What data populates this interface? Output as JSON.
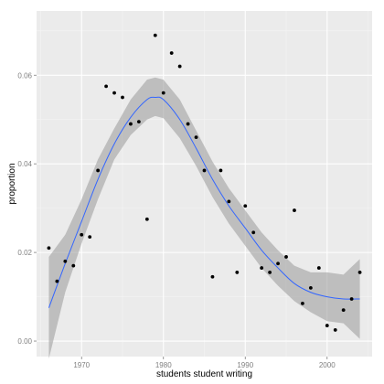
{
  "chart_data": {
    "type": "scatter",
    "xlabel": "students student writing",
    "ylabel": "proportion",
    "xlim": [
      1964.5,
      2005.5
    ],
    "ylim": [
      -0.0035,
      0.0745
    ],
    "x_ticks": [
      1970,
      1980,
      1990,
      2000
    ],
    "x_tick_labels": [
      "1970",
      "1980",
      "1990",
      "2000"
    ],
    "y_ticks": [
      0.0,
      0.02,
      0.04,
      0.06
    ],
    "y_tick_labels": [
      "0.00",
      "0.02",
      "0.04",
      "0.06"
    ],
    "grid": true,
    "legend": "none",
    "points": {
      "x": [
        1966,
        1967,
        1968,
        1969,
        1970,
        1971,
        1972,
        1973,
        1974,
        1975,
        1976,
        1977,
        1978,
        1979,
        1980,
        1981,
        1982,
        1983,
        1984,
        1985,
        1986,
        1987,
        1988,
        1989,
        1990,
        1991,
        1992,
        1993,
        1994,
        1995,
        1996,
        1997,
        1998,
        1999,
        2000,
        2001,
        2002,
        2003,
        2004
      ],
      "y": [
        0.021,
        0.0135,
        0.018,
        0.017,
        0.024,
        0.0235,
        0.0385,
        0.0575,
        0.056,
        0.055,
        0.049,
        0.0495,
        0.0275,
        0.069,
        0.056,
        0.065,
        0.062,
        0.049,
        0.046,
        0.0385,
        0.0145,
        0.0385,
        0.0315,
        0.0155,
        0.0305,
        0.0245,
        0.0165,
        0.0155,
        0.0175,
        0.019,
        0.0295,
        0.0085,
        0.012,
        0.0165,
        0.0035,
        0.0025,
        0.007,
        0.0095,
        0.0155
      ]
    },
    "smooth": {
      "x": [
        1966,
        1968,
        1970,
        1972,
        1974,
        1976,
        1978,
        1979,
        1980,
        1982,
        1984,
        1986,
        1988,
        1990,
        1992,
        1994,
        1996,
        1998,
        2000,
        2002,
        2004
      ],
      "y": [
        0.0075,
        0.0175,
        0.027,
        0.0365,
        0.0445,
        0.0505,
        0.0545,
        0.055,
        0.0545,
        0.05,
        0.0435,
        0.0365,
        0.0305,
        0.0255,
        0.0205,
        0.0165,
        0.013,
        0.011,
        0.01,
        0.0095,
        0.0095
      ],
      "lower": [
        -0.004,
        0.011,
        0.022,
        0.032,
        0.041,
        0.0465,
        0.05,
        0.0508,
        0.0503,
        0.0458,
        0.0395,
        0.0325,
        0.0265,
        0.0215,
        0.0165,
        0.0125,
        0.009,
        0.0065,
        0.0045,
        0.004,
        0.0005
      ],
      "upper": [
        0.019,
        0.024,
        0.032,
        0.041,
        0.048,
        0.0545,
        0.059,
        0.0595,
        0.059,
        0.0545,
        0.0475,
        0.0405,
        0.0345,
        0.0295,
        0.0245,
        0.0205,
        0.017,
        0.0155,
        0.0155,
        0.015,
        0.0185
      ]
    },
    "colors": {
      "panel": "#ebebeb",
      "grid_major": "#ffffff",
      "grid_minor": "#f4f4f4",
      "ribbon": "#999999",
      "line": "#3366ff",
      "point": "#000000",
      "tick_text": "#7f7f7f",
      "axis_title": "#000000"
    }
  }
}
